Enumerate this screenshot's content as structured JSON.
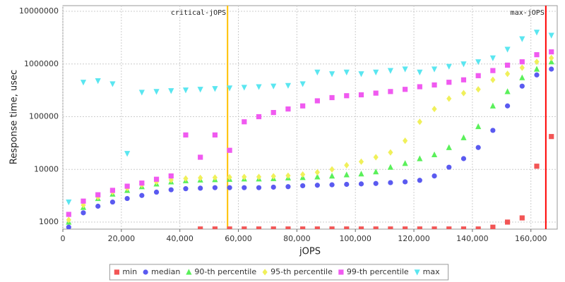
{
  "chart_data": {
    "type": "scatter",
    "x_label": "jOPS",
    "y_label": "Response time, usec",
    "log_y": true,
    "grid": true,
    "legend_position": "bottom",
    "xlim": [
      0,
      169000
    ],
    "ylim": [
      735,
      12800000
    ],
    "xticks": [
      0,
      {
        "value": 20000,
        "label": "20,000"
      },
      {
        "value": 40000,
        "label": "40,000"
      },
      {
        "value": 60000,
        "label": "60,000"
      },
      {
        "value": 80000,
        "label": "80,000"
      },
      {
        "value": 100000,
        "label": "100,000"
      },
      {
        "value": 120000,
        "label": "120,000"
      },
      {
        "value": 140000,
        "label": "140,000"
      },
      {
        "value": 160000,
        "label": "160,000"
      }
    ],
    "yticks": [
      1000,
      10000,
      100000,
      1000000,
      10000000
    ],
    "markers": [
      {
        "label": "critical-jOPS",
        "value": 56300,
        "color": "#ffc000"
      },
      {
        "label": "max-jOPS",
        "value": 165100,
        "color": "#ff0000"
      }
    ],
    "x": [
      2000,
      7000,
      12000,
      17000,
      22000,
      27000,
      32000,
      37000,
      42000,
      47000,
      52000,
      57000,
      62000,
      67000,
      72000,
      77000,
      82000,
      87000,
      92000,
      97000,
      102000,
      107000,
      112000,
      117000,
      122000,
      127000,
      132000,
      137000,
      142000,
      147000,
      152000,
      157000,
      162000,
      167000
    ],
    "series": [
      {
        "name": "min",
        "color": "#f25555",
        "marker": "square",
        "values": [
          null,
          null,
          null,
          null,
          null,
          null,
          null,
          null,
          null,
          740,
          740,
          740,
          740,
          740,
          740,
          740,
          740,
          740,
          740,
          740,
          740,
          740,
          740,
          740,
          740,
          740,
          740,
          740,
          740,
          800,
          1000,
          1200,
          11500,
          42000
        ]
      },
      {
        "name": "median",
        "color": "#5a5af0",
        "marker": "circle",
        "values": [
          800,
          1500,
          2000,
          2400,
          2800,
          3200,
          3700,
          4100,
          4300,
          4400,
          4500,
          4500,
          4500,
          4500,
          4600,
          4700,
          4900,
          5000,
          5100,
          5200,
          5300,
          5400,
          5600,
          5800,
          6200,
          7500,
          11000,
          16000,
          26000,
          55000,
          160000,
          380000,
          620000,
          800000
        ]
      },
      {
        "name": "90-th percentile",
        "color": "#5af05a",
        "marker": "triangle-up",
        "values": [
          1000,
          1900,
          2800,
          3400,
          4000,
          4700,
          5300,
          5800,
          6100,
          6300,
          6400,
          6500,
          6600,
          6600,
          6700,
          6900,
          7000,
          7200,
          7500,
          7900,
          8200,
          9000,
          11000,
          13000,
          16000,
          19000,
          26000,
          40000,
          65000,
          160000,
          300000,
          550000,
          800000,
          1100000
        ]
      },
      {
        "name": "95-th percentile",
        "color": "#f0f05a",
        "marker": "diamond",
        "values": [
          1100,
          2100,
          3000,
          3700,
          4400,
          5100,
          5800,
          6300,
          6700,
          6900,
          7000,
          7100,
          7200,
          7200,
          7400,
          7600,
          8000,
          8800,
          10000,
          12000,
          14000,
          17000,
          21000,
          35000,
          80000,
          140000,
          220000,
          280000,
          330000,
          500000,
          650000,
          850000,
          1100000,
          1300000
        ]
      },
      {
        "name": "99-th percentile",
        "color": "#f05af0",
        "marker": "square",
        "values": [
          1400,
          2500,
          3300,
          4000,
          4800,
          5500,
          6500,
          7500,
          45000,
          17000,
          45000,
          23000,
          80000,
          100000,
          120000,
          140000,
          160000,
          200000,
          230000,
          250000,
          260000,
          280000,
          300000,
          330000,
          370000,
          400000,
          450000,
          500000,
          600000,
          750000,
          950000,
          1100000,
          1500000,
          1700000
        ]
      },
      {
        "name": "max",
        "color": "#5ae6f0",
        "marker": "triangle-down",
        "values": [
          2400,
          450000,
          480000,
          420000,
          20000,
          290000,
          300000,
          310000,
          320000,
          330000,
          340000,
          350000,
          360000,
          370000,
          380000,
          390000,
          420000,
          700000,
          650000,
          700000,
          650000,
          700000,
          750000,
          800000,
          700000,
          800000,
          900000,
          1000000,
          1100000,
          1300000,
          1900000,
          3000000,
          4000000,
          3500000
        ]
      }
    ]
  }
}
